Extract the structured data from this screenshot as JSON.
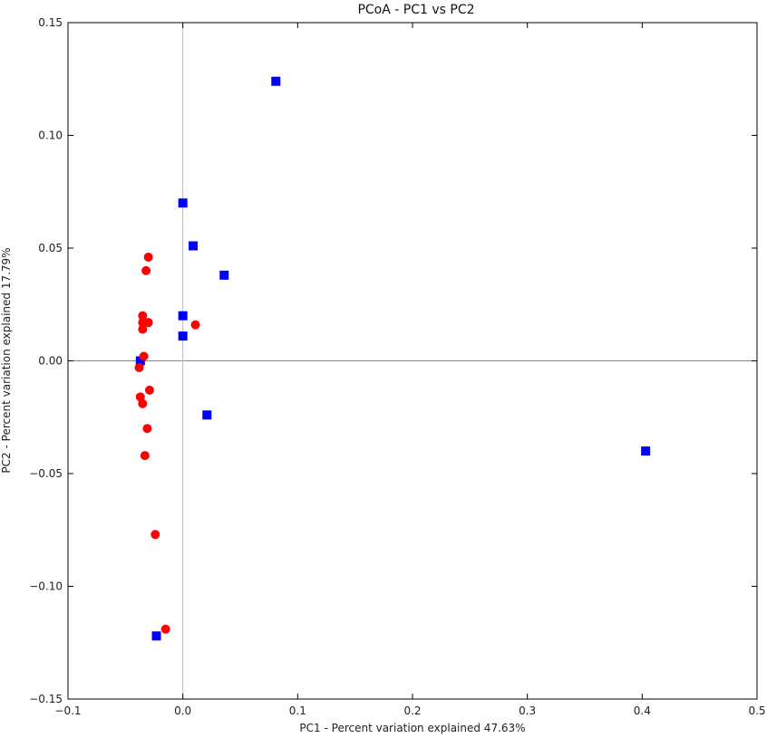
{
  "chart_data": {
    "type": "scatter",
    "title": "PCoA - PC1 vs PC2",
    "xlabel": "PC1 - Percent variation explained 47.63%",
    "ylabel": "PC2 - Percent variation explained 17.79%",
    "xlim": [
      -0.1,
      0.5
    ],
    "ylim": [
      -0.15,
      0.15
    ],
    "xticks": [
      -0.1,
      0.0,
      0.1,
      0.2,
      0.3,
      0.4,
      0.5
    ],
    "yticks": [
      -0.15,
      -0.1,
      -0.05,
      0.0,
      0.05,
      0.1,
      0.15
    ],
    "xtick_labels": [
      "−0.1",
      "0.0",
      "0.1",
      "0.2",
      "0.3",
      "0.4",
      "0.5"
    ],
    "ytick_labels": [
      "−0.15",
      "−0.10",
      "−0.05",
      "0.00",
      "0.05",
      "0.10",
      "0.15"
    ],
    "zero_lines": true,
    "grid": false,
    "series": [
      {
        "marker": "square",
        "color": "#0000ff",
        "points": [
          {
            "x": 0.081,
            "y": 0.124
          },
          {
            "x": 0.0,
            "y": 0.07
          },
          {
            "x": 0.009,
            "y": 0.051
          },
          {
            "x": 0.036,
            "y": 0.038
          },
          {
            "x": 0.0,
            "y": 0.02
          },
          {
            "x": 0.0,
            "y": 0.011
          },
          {
            "x": -0.037,
            "y": 0.0
          },
          {
            "x": 0.021,
            "y": -0.024
          },
          {
            "x": 0.403,
            "y": -0.04
          },
          {
            "x": -0.023,
            "y": -0.122
          }
        ]
      },
      {
        "marker": "circle",
        "color": "#ff0000",
        "points": [
          {
            "x": -0.03,
            "y": 0.046
          },
          {
            "x": -0.032,
            "y": 0.04
          },
          {
            "x": -0.035,
            "y": 0.02
          },
          {
            "x": -0.035,
            "y": 0.017
          },
          {
            "x": -0.03,
            "y": 0.017
          },
          {
            "x": -0.035,
            "y": 0.014
          },
          {
            "x": 0.011,
            "y": 0.016
          },
          {
            "x": -0.034,
            "y": 0.002
          },
          {
            "x": -0.038,
            "y": -0.003
          },
          {
            "x": -0.029,
            "y": -0.013
          },
          {
            "x": -0.037,
            "y": -0.016
          },
          {
            "x": -0.035,
            "y": -0.019
          },
          {
            "x": -0.031,
            "y": -0.03
          },
          {
            "x": -0.033,
            "y": -0.042
          },
          {
            "x": -0.024,
            "y": -0.077
          },
          {
            "x": -0.015,
            "y": -0.119
          }
        ]
      }
    ]
  }
}
